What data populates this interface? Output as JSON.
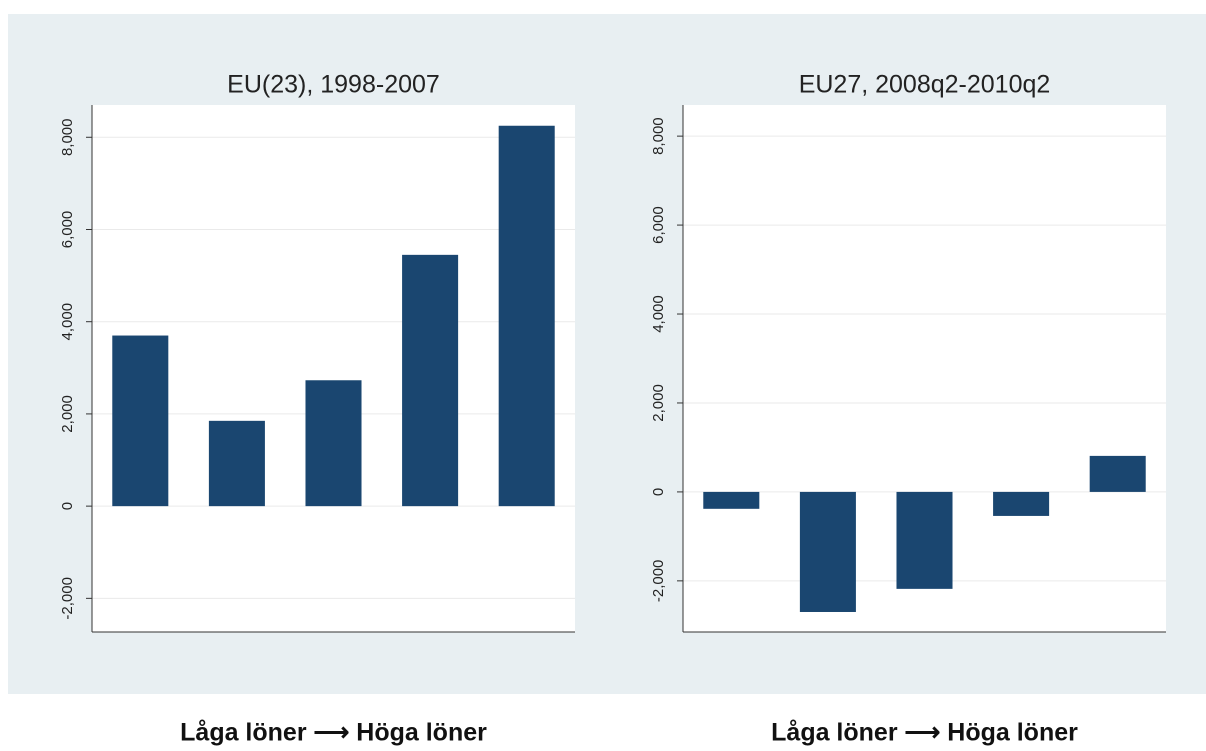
{
  "chart_data": [
    {
      "type": "bar",
      "title": "EU(23), 1998-2007",
      "xlabel": "Låga löner ⟶ Höga löner",
      "categories": [
        null,
        null,
        null,
        null,
        null
      ],
      "values": [
        3700,
        1850,
        2730,
        5450,
        8250
      ],
      "color": "#1a4670",
      "ylim": [
        -2730,
        8700
      ],
      "yticks": [
        {
          "value": -2000,
          "label": "-2,000"
        },
        0,
        {
          "value": 2000,
          "label": "2,000"
        },
        {
          "value": 4000,
          "label": "4,000"
        },
        {
          "value": 6000,
          "label": "6,000"
        },
        {
          "value": 8000,
          "label": "8,000"
        }
      ],
      "grid": true
    },
    {
      "type": "bar",
      "title": "EU27, 2008q2-2010q2",
      "xlabel": "Låga löner ⟶ Höga löner",
      "categories": [
        null,
        null,
        null,
        null,
        null
      ],
      "values": [
        -380,
        -2700,
        -2180,
        -540,
        810
      ],
      "color": "#1a4670",
      "ylim": [
        -3150,
        8700
      ],
      "yticks": [
        {
          "value": -2000,
          "label": "-2,000"
        },
        0,
        {
          "value": 2000,
          "label": "2,000"
        },
        {
          "value": 4000,
          "label": "4,000"
        },
        {
          "value": 6000,
          "label": "6,000"
        },
        {
          "value": 8000,
          "label": "8,000"
        }
      ],
      "grid": true
    }
  ]
}
